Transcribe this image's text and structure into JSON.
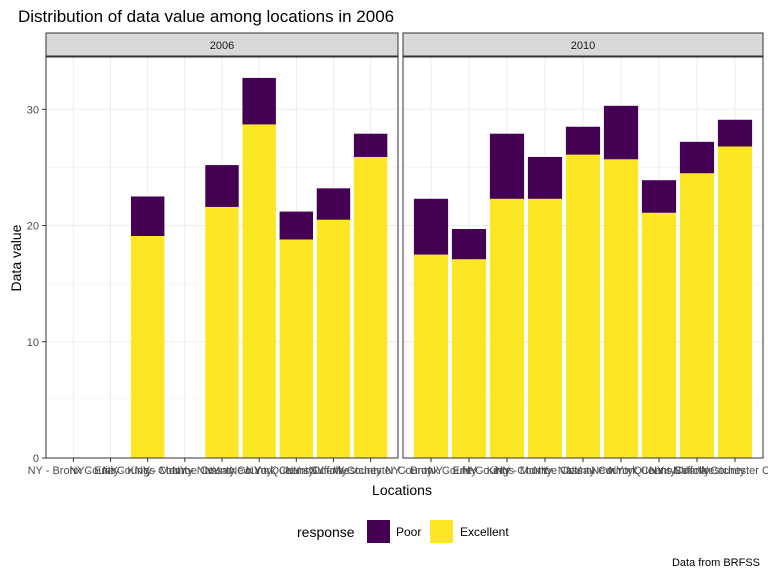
{
  "chart_data": {
    "type": "bar",
    "stacked": true,
    "title": "Distribution of data value among locations in 2006",
    "xlabel": "Locations",
    "ylabel": "Data value",
    "caption": "Data from BRFSS",
    "ylim": [
      0,
      34.5
    ],
    "y_ticks": [
      0,
      10,
      20,
      30
    ],
    "grid": true,
    "legend": {
      "title": "response",
      "position": "bottom",
      "entries": [
        {
          "name": "Poor",
          "color": "#440154"
        },
        {
          "name": "Excellent",
          "color": "#FDE725"
        }
      ]
    },
    "categories": [
      "NY - Bronx County",
      "NY - Erie County",
      "NY - Kings County",
      "NY - Monroe County",
      "NY - Nassau County",
      "NY - New York County",
      "NY - Queens County",
      "NY - Suffolk County",
      "NY - Westchester County"
    ],
    "panels": [
      {
        "label": "2006",
        "series": [
          {
            "name": "Excellent",
            "values": [
              null,
              null,
              19.1,
              null,
              21.6,
              28.7,
              18.8,
              20.5,
              25.9
            ]
          },
          {
            "name": "Poor",
            "values": [
              null,
              null,
              3.4,
              null,
              3.6,
              4.0,
              2.4,
              2.7,
              2.0
            ]
          }
        ]
      },
      {
        "label": "2010",
        "series": [
          {
            "name": "Excellent",
            "values": [
              17.5,
              17.1,
              22.3,
              22.3,
              26.1,
              25.7,
              21.1,
              24.5,
              26.8
            ]
          },
          {
            "name": "Poor",
            "values": [
              4.8,
              2.6,
              5.6,
              3.6,
              2.4,
              4.6,
              2.8,
              2.7,
              2.3
            ]
          }
        ]
      }
    ]
  }
}
